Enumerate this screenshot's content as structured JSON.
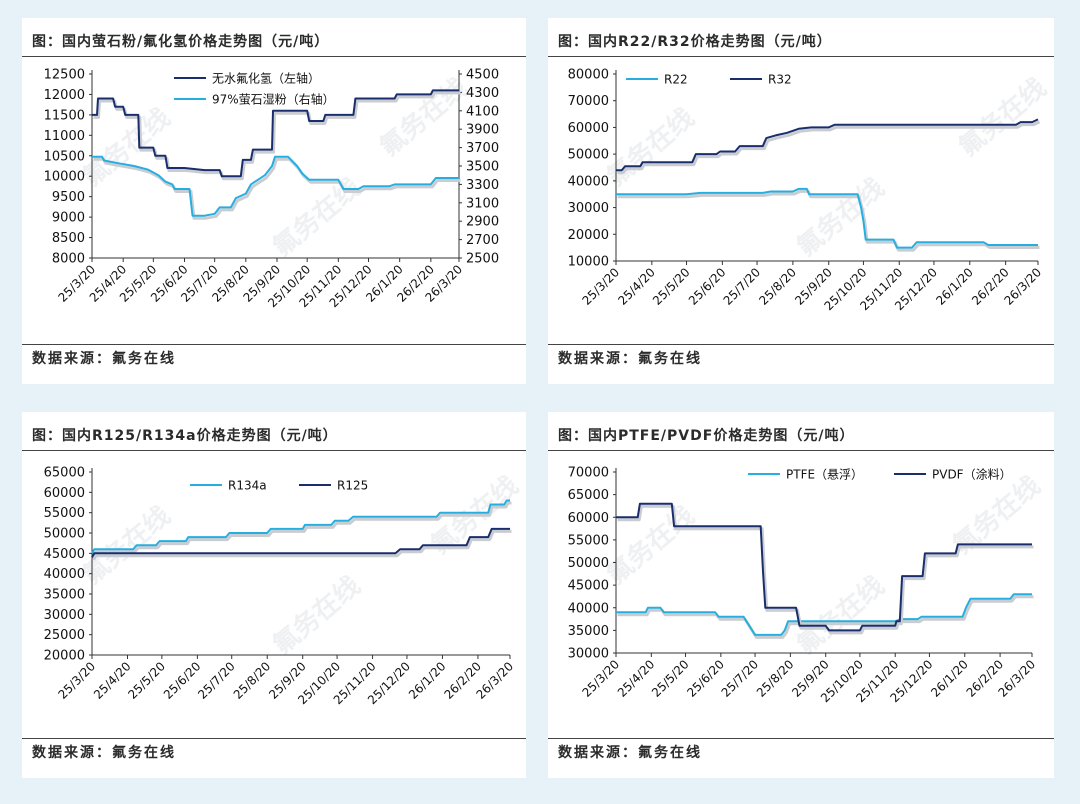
{
  "colors": {
    "dark_series": "#1a2e6e",
    "light_series": "#27aee0",
    "background": "#e7f1f8",
    "panel": "#ffffff"
  },
  "panels": [
    {
      "title": "图：国内萤石粉/氟化氢价格走势图（元/吨）",
      "source": "数据来源：氟务在线",
      "watermark": "氟务在线"
    },
    {
      "title": "图：国内R22/R32价格走势图（元/吨）",
      "source": "数据来源：氟务在线",
      "watermark": "氟务在线"
    },
    {
      "title": "图：国内R125/R134a价格走势图（元/吨）",
      "source": "数据来源：氟务在线",
      "watermark": "氟务在线"
    },
    {
      "title": "图：国内PTFE/PVDF价格走势图（元/吨）",
      "source": "数据来源：氟务在线",
      "watermark": "氟务在线"
    }
  ],
  "chart_data": [
    {
      "type": "line",
      "title": "图：国内萤石粉/氟化氢价格走势图（元/吨）",
      "x_tick_labels": [
        "25/3/20",
        "25/4/20",
        "25/5/20",
        "25/6/20",
        "25/7/20",
        "25/8/20",
        "25/9/20",
        "25/10/20",
        "25/11/20",
        "25/12/20",
        "26/1/20",
        "26/2/20",
        "26/3/20"
      ],
      "y_ticks": [
        8000,
        8500,
        9000,
        9500,
        10000,
        10500,
        11000,
        11500,
        12000,
        12500
      ],
      "ylim": [
        8000,
        12500
      ],
      "y2_ticks": [
        2500,
        2700,
        2900,
        3100,
        3300,
        3500,
        3700,
        3900,
        4100,
        4300,
        4500
      ],
      "y2lim": [
        2500,
        4500
      ],
      "legend_position": "top-left",
      "series": [
        {
          "name": "无水氟化氢（左轴）",
          "axis": "left",
          "color": "#1a2e6e",
          "points": [
            [
              "25/3/20",
              11500
            ],
            [
              "25/3/25",
              11500
            ],
            [
              "25/3/26",
              11900
            ],
            [
              "25/4/10",
              11900
            ],
            [
              "25/4/12",
              11700
            ],
            [
              "25/4/20",
              11700
            ],
            [
              "25/4/22",
              11500
            ],
            [
              "25/5/5",
              11500
            ],
            [
              "25/5/6",
              10700
            ],
            [
              "25/5/20",
              10700
            ],
            [
              "25/5/22",
              10500
            ],
            [
              "25/6/1",
              10500
            ],
            [
              "25/6/3",
              10200
            ],
            [
              "25/6/20",
              10200
            ],
            [
              "25/7/10",
              10150
            ],
            [
              "25/7/25",
              10150
            ],
            [
              "25/7/27",
              10000
            ],
            [
              "25/8/15",
              10000
            ],
            [
              "25/8/17",
              10400
            ],
            [
              "25/8/25",
              10400
            ],
            [
              "25/8/27",
              10650
            ],
            [
              "25/9/15",
              10650
            ],
            [
              "25/9/16",
              11600
            ],
            [
              "25/10/20",
              11600
            ],
            [
              "25/10/22",
              11350
            ],
            [
              "25/11/5",
              11350
            ],
            [
              "25/11/7",
              11500
            ],
            [
              "25/12/5",
              11500
            ],
            [
              "25/12/7",
              11900
            ],
            [
              "26/1/15",
              11900
            ],
            [
              "26/1/17",
              12000
            ],
            [
              "26/2/20",
              12000
            ],
            [
              "26/2/22",
              12100
            ],
            [
              "26/3/20",
              12100
            ]
          ]
        },
        {
          "name": "97%萤石湿粉（右轴）",
          "axis": "right",
          "color": "#27aee0",
          "points": [
            [
              "25/3/20",
              3600
            ],
            [
              "25/3/30",
              3600
            ],
            [
              "25/4/1",
              3560
            ],
            [
              "25/4/15",
              3530
            ],
            [
              "25/5/1",
              3500
            ],
            [
              "25/5/15",
              3460
            ],
            [
              "25/5/25",
              3400
            ],
            [
              "25/6/1",
              3330
            ],
            [
              "25/6/8",
              3300
            ],
            [
              "25/6/10",
              3250
            ],
            [
              "25/6/25",
              3250
            ],
            [
              "25/6/28",
              2960
            ],
            [
              "25/7/10",
              2960
            ],
            [
              "25/7/20",
              2980
            ],
            [
              "25/7/25",
              3050
            ],
            [
              "25/8/5",
              3050
            ],
            [
              "25/8/10",
              3150
            ],
            [
              "25/8/20",
              3200
            ],
            [
              "25/8/25",
              3300
            ],
            [
              "25/9/1",
              3350
            ],
            [
              "25/9/8",
              3400
            ],
            [
              "25/9/15",
              3500
            ],
            [
              "25/9/18",
              3600
            ],
            [
              "25/10/1",
              3600
            ],
            [
              "25/10/10",
              3500
            ],
            [
              "25/10/15",
              3420
            ],
            [
              "25/10/22",
              3350
            ],
            [
              "25/11/5",
              3350
            ],
            [
              "25/11/20",
              3350
            ],
            [
              "25/11/25",
              3250
            ],
            [
              "25/12/10",
              3250
            ],
            [
              "25/12/15",
              3280
            ],
            [
              "26/1/10",
              3280
            ],
            [
              "26/1/15",
              3300
            ],
            [
              "26/2/20",
              3300
            ],
            [
              "26/2/25",
              3370
            ],
            [
              "26/3/20",
              3370
            ]
          ]
        }
      ]
    },
    {
      "type": "line",
      "title": "图：国内R22/R32价格走势图（元/吨）",
      "x_tick_labels": [
        "25/3/20",
        "25/4/20",
        "25/5/20",
        "25/6/20",
        "25/7/20",
        "25/8/20",
        "25/9/20",
        "25/10/20",
        "25/11/20",
        "25/12/20",
        "26/1/20",
        "26/2/20",
        "26/3/20"
      ],
      "y_ticks": [
        10000,
        20000,
        30000,
        40000,
        50000,
        60000,
        70000,
        80000
      ],
      "ylim": [
        10000,
        80000
      ],
      "legend_position": "top-left",
      "series": [
        {
          "name": "R22",
          "color": "#27aee0",
          "points": [
            [
              "25/3/20",
              35000
            ],
            [
              "25/5/20",
              35000
            ],
            [
              "25/6/1",
              35500
            ],
            [
              "25/7/25",
              35500
            ],
            [
              "25/8/1",
              36000
            ],
            [
              "25/8/20",
              36000
            ],
            [
              "25/8/25",
              37000
            ],
            [
              "25/9/1",
              37000
            ],
            [
              "25/9/3",
              35000
            ],
            [
              "25/10/15",
              35000
            ],
            [
              "25/10/18",
              30000
            ],
            [
              "25/10/20",
              25000
            ],
            [
              "25/10/22",
              18000
            ],
            [
              "25/11/15",
              18000
            ],
            [
              "25/11/18",
              15000
            ],
            [
              "25/12/1",
              15000
            ],
            [
              "25/12/5",
              17000
            ],
            [
              "26/2/1",
              17000
            ],
            [
              "26/2/5",
              16000
            ],
            [
              "26/3/20",
              16000
            ]
          ]
        },
        {
          "name": "R32",
          "color": "#1a2e6e",
          "points": [
            [
              "25/3/20",
              44000
            ],
            [
              "25/3/25",
              44000
            ],
            [
              "25/3/28",
              45500
            ],
            [
              "25/4/10",
              45500
            ],
            [
              "25/4/12",
              47000
            ],
            [
              "25/5/25",
              47000
            ],
            [
              "25/5/28",
              50000
            ],
            [
              "25/6/15",
              50000
            ],
            [
              "25/6/18",
              51000
            ],
            [
              "25/7/1",
              51000
            ],
            [
              "25/7/5",
              53000
            ],
            [
              "25/7/25",
              53000
            ],
            [
              "25/7/28",
              56000
            ],
            [
              "25/8/5",
              57000
            ],
            [
              "25/8/15",
              58000
            ],
            [
              "25/8/25",
              59500
            ],
            [
              "25/9/5",
              60000
            ],
            [
              "25/9/20",
              60000
            ],
            [
              "25/9/25",
              61000
            ],
            [
              "26/3/1",
              61000
            ],
            [
              "26/3/5",
              62000
            ],
            [
              "26/3/15",
              62000
            ],
            [
              "26/3/20",
              63000
            ]
          ]
        }
      ]
    },
    {
      "type": "line",
      "title": "图：国内R125/R134a价格走势图（元/吨）",
      "x_tick_labels": [
        "25/3/20",
        "25/4/20",
        "25/5/20",
        "25/6/20",
        "25/7/20",
        "25/8/20",
        "25/9/20",
        "25/10/20",
        "25/11/20",
        "25/12/20",
        "26/1/20",
        "26/2/20",
        "26/3/20"
      ],
      "y_ticks": [
        20000,
        25000,
        30000,
        35000,
        40000,
        45000,
        50000,
        55000,
        60000,
        65000
      ],
      "ylim": [
        20000,
        65000
      ],
      "legend_position": "top-center",
      "series": [
        {
          "name": "R134a",
          "color": "#27aee0",
          "points": [
            [
              "25/3/20",
              45000
            ],
            [
              "25/3/22",
              46000
            ],
            [
              "25/4/25",
              46000
            ],
            [
              "25/4/28",
              47000
            ],
            [
              "25/5/15",
              47000
            ],
            [
              "25/5/18",
              48000
            ],
            [
              "25/6/10",
              48000
            ],
            [
              "25/6/12",
              49000
            ],
            [
              "25/7/15",
              49000
            ],
            [
              "25/7/18",
              50000
            ],
            [
              "25/8/20",
              50000
            ],
            [
              "25/8/23",
              51000
            ],
            [
              "25/9/20",
              51000
            ],
            [
              "25/9/22",
              52000
            ],
            [
              "25/10/15",
              52000
            ],
            [
              "25/10/18",
              53000
            ],
            [
              "25/10/30",
              53000
            ],
            [
              "25/11/3",
              54000
            ],
            [
              "26/1/15",
              54000
            ],
            [
              "26/1/18",
              55000
            ],
            [
              "26/3/1",
              55000
            ],
            [
              "26/3/3",
              57000
            ],
            [
              "26/3/15",
              57000
            ],
            [
              "26/3/17",
              58000
            ],
            [
              "26/3/20",
              58000
            ]
          ]
        },
        {
          "name": "R125",
          "color": "#1a2e6e",
          "points": [
            [
              "25/3/20",
              44000
            ],
            [
              "25/3/22",
              45000
            ],
            [
              "25/12/10",
              45000
            ],
            [
              "25/12/14",
              46000
            ],
            [
              "25/12/31",
              46000
            ],
            [
              "26/1/3",
              47000
            ],
            [
              "26/2/10",
              47000
            ],
            [
              "26/2/13",
              49000
            ],
            [
              "26/3/1",
              49000
            ],
            [
              "26/3/4",
              51000
            ],
            [
              "26/3/20",
              51000
            ]
          ]
        }
      ]
    },
    {
      "type": "line",
      "title": "图：国内PTFE/PVDF价格走势图（元/吨）",
      "x_tick_labels": [
        "25/3/20",
        "25/4/20",
        "25/5/20",
        "25/6/20",
        "25/7/20",
        "25/8/20",
        "25/9/20",
        "25/10/20",
        "25/11/20",
        "25/12/20",
        "26/1/20",
        "26/2/20",
        "26/3/20"
      ],
      "y_ticks": [
        30000,
        35000,
        40000,
        45000,
        50000,
        55000,
        60000,
        65000,
        70000
      ],
      "ylim": [
        30000,
        70000
      ],
      "legend_position": "top-center",
      "series": [
        {
          "name": "PTFE（悬浮）",
          "color": "#27aee0",
          "points": [
            [
              "25/3/20",
              39000
            ],
            [
              "25/4/15",
              39000
            ],
            [
              "25/4/17",
              40000
            ],
            [
              "25/4/28",
              40000
            ],
            [
              "25/5/1",
              39000
            ],
            [
              "25/6/15",
              39000
            ],
            [
              "25/6/18",
              38000
            ],
            [
              "25/7/10",
              38000
            ],
            [
              "25/7/15",
              36000
            ],
            [
              "25/7/20",
              34000
            ],
            [
              "25/8/12",
              34000
            ],
            [
              "25/8/15",
              35000
            ],
            [
              "25/8/18",
              37000
            ],
            [
              "25/11/20",
              37000
            ],
            [
              "25/11/25",
              37500
            ],
            [
              "25/12/10",
              37500
            ],
            [
              "25/12/13",
              38000
            ],
            [
              "26/1/18",
              38000
            ],
            [
              "26/1/21",
              40000
            ],
            [
              "26/1/25",
              42000
            ],
            [
              "26/3/1",
              42000
            ],
            [
              "26/3/4",
              43000
            ],
            [
              "26/3/20",
              43000
            ]
          ]
        },
        {
          "name": "PVDF（涂料）",
          "color": "#1a2e6e",
          "points": [
            [
              "25/3/20",
              60000
            ],
            [
              "25/4/8",
              60000
            ],
            [
              "25/4/10",
              63000
            ],
            [
              "25/5/8",
              63000
            ],
            [
              "25/5/10",
              58000
            ],
            [
              "25/7/25",
              58000
            ],
            [
              "25/7/27",
              48000
            ],
            [
              "25/7/29",
              40000
            ],
            [
              "25/8/25",
              40000
            ],
            [
              "25/8/28",
              36000
            ],
            [
              "25/9/20",
              36000
            ],
            [
              "25/9/23",
              35000
            ],
            [
              "25/10/20",
              35000
            ],
            [
              "25/10/22",
              36000
            ],
            [
              "25/11/20",
              36000
            ],
            [
              "25/11/21",
              37000
            ],
            [
              "25/11/24",
              37000
            ],
            [
              "25/11/26",
              47000
            ],
            [
              "25/12/14",
              47000
            ],
            [
              "25/12/16",
              52000
            ],
            [
              "26/1/12",
              52000
            ],
            [
              "26/1/14",
              54000
            ],
            [
              "26/3/20",
              54000
            ]
          ]
        }
      ]
    }
  ]
}
